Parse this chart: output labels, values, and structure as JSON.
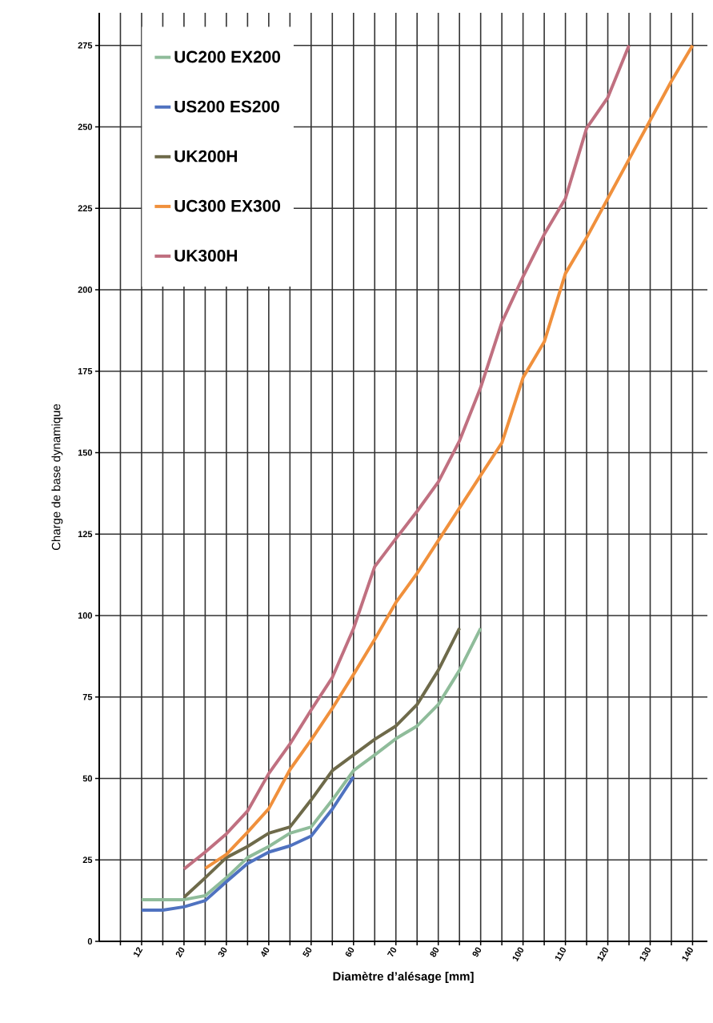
{
  "chart_data": {
    "type": "line",
    "xlabel": "Diamètre d’alésage [mm]",
    "ylabel": "Charge de base dynamique",
    "categories": [
      null,
      "12",
      null,
      "20",
      null,
      "30",
      null,
      "40",
      null,
      "50",
      null,
      "60",
      null,
      "70",
      null,
      "80",
      null,
      "90",
      null,
      "100",
      null,
      "110",
      null,
      "120",
      null,
      "130",
      null,
      "140"
    ],
    "series": [
      {
        "name": "UC200  EX200",
        "color": "#8fbc9a",
        "values": [
          null,
          12.8,
          12.8,
          12.8,
          14,
          19.5,
          25.7,
          29.1,
          33.2,
          35.1,
          43.4,
          52.4,
          57.2,
          62.2,
          66.1,
          72.7,
          83.2,
          96.1,
          null,
          null,
          null,
          null,
          null,
          null,
          null,
          null,
          null,
          null
        ]
      },
      {
        "name": "US200  ES200",
        "color": "#4f72c0",
        "values": [
          null,
          9.6,
          9.6,
          10.6,
          12.5,
          18.3,
          23.9,
          27.4,
          29.3,
          32.3,
          40.6,
          50.5,
          null,
          null,
          null,
          null,
          null,
          null,
          null,
          null,
          null,
          null,
          null,
          null,
          null,
          null,
          null,
          null
        ]
      },
      {
        "name": "UK200H",
        "color": "#6e6a4a",
        "values": [
          null,
          null,
          null,
          13.5,
          19.5,
          25.7,
          29.1,
          33.2,
          35.1,
          43.4,
          52.4,
          57.2,
          62,
          66.1,
          72.7,
          83.2,
          96.1,
          null,
          null,
          null,
          null,
          null,
          null,
          null,
          null,
          null,
          null,
          null
        ]
      },
      {
        "name": "UC300 EX300",
        "color": "#f0903c",
        "values": [
          null,
          null,
          null,
          null,
          22.4,
          26.7,
          33.5,
          40.7,
          52.7,
          61.8,
          71.5,
          81.9,
          92.7,
          104,
          113,
          123,
          133,
          143,
          153,
          173,
          184,
          205,
          216,
          228,
          240,
          252,
          264,
          275
        ]
      },
      {
        "name": "UK300H",
        "color": "#c07080",
        "values": [
          null,
          null,
          null,
          22.2,
          27.4,
          33,
          40,
          51.5,
          60.6,
          71,
          81,
          96,
          115,
          123.6,
          132,
          141,
          153.6,
          170,
          190,
          204,
          217,
          228,
          249.6,
          259,
          275,
          null,
          null,
          null
        ]
      }
    ],
    "ylim": [
      0,
      285
    ],
    "yticks": [
      0,
      25,
      50,
      75,
      100,
      125,
      150,
      175,
      200,
      225,
      250,
      275
    ],
    "grid": true,
    "legend": "top left",
    "line_style": "solid"
  }
}
